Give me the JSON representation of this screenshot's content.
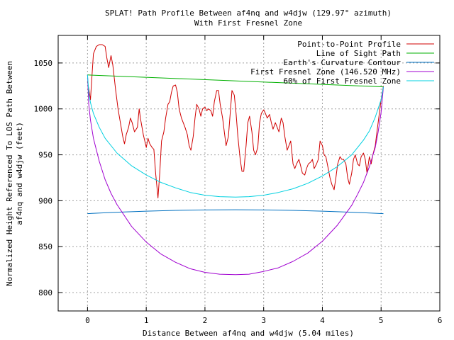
{
  "chart_data": {
    "type": "line",
    "title": "SPLAT! Path Profile Between af4nq and w4djw (129.97° azimuth)",
    "subtitle": "With First Fresnel Zone",
    "xlabel": "Distance Between af4nq and w4djw (5.04 miles)",
    "ylabel_line1": "Normalized Height Referenced To LOS Path Between",
    "ylabel_line2": "af4nq and w4djw (feet)",
    "xlim": [
      -0.5,
      6
    ],
    "ylim": [
      780,
      1080
    ],
    "xticks": [
      0,
      1,
      2,
      3,
      4,
      5,
      6
    ],
    "yticks": [
      800,
      850,
      900,
      950,
      1000,
      1050
    ],
    "grid": true,
    "legend_position": "top-right",
    "series": [
      {
        "name": "Point-to-Point Profile",
        "color": "#d00000",
        "points": [
          [
            0,
            1030
          ],
          [
            0.05,
            1010
          ],
          [
            0.08,
            1040
          ],
          [
            0.1,
            1060
          ],
          [
            0.15,
            1068
          ],
          [
            0.2,
            1070
          ],
          [
            0.25,
            1070
          ],
          [
            0.3,
            1068
          ],
          [
            0.33,
            1055
          ],
          [
            0.36,
            1045
          ],
          [
            0.4,
            1058
          ],
          [
            0.43,
            1048
          ],
          [
            0.48,
            1020
          ],
          [
            0.52,
            1000
          ],
          [
            0.56,
            985
          ],
          [
            0.6,
            970
          ],
          [
            0.63,
            962
          ],
          [
            0.66,
            972
          ],
          [
            0.7,
            980
          ],
          [
            0.73,
            990
          ],
          [
            0.76,
            985
          ],
          [
            0.8,
            975
          ],
          [
            0.85,
            980
          ],
          [
            0.88,
            1000
          ],
          [
            0.9,
            990
          ],
          [
            0.95,
            972
          ],
          [
            1.0,
            958
          ],
          [
            1.03,
            968
          ],
          [
            1.06,
            962
          ],
          [
            1.1,
            958
          ],
          [
            1.13,
            956
          ],
          [
            1.16,
            930
          ],
          [
            1.2,
            903
          ],
          [
            1.23,
            930
          ],
          [
            1.26,
            965
          ],
          [
            1.3,
            975
          ],
          [
            1.33,
            990
          ],
          [
            1.37,
            1005
          ],
          [
            1.4,
            1008
          ],
          [
            1.43,
            1018
          ],
          [
            1.46,
            1025
          ],
          [
            1.5,
            1026
          ],
          [
            1.53,
            1018
          ],
          [
            1.56,
            1000
          ],
          [
            1.6,
            990
          ],
          [
            1.63,
            985
          ],
          [
            1.66,
            980
          ],
          [
            1.7,
            972
          ],
          [
            1.73,
            960
          ],
          [
            1.76,
            955
          ],
          [
            1.8,
            970
          ],
          [
            1.83,
            990
          ],
          [
            1.86,
            1005
          ],
          [
            1.9,
            1000
          ],
          [
            1.93,
            992
          ],
          [
            1.96,
            1000
          ],
          [
            2.0,
            1002
          ],
          [
            2.03,
            998
          ],
          [
            2.06,
            1000
          ],
          [
            2.1,
            998
          ],
          [
            2.13,
            992
          ],
          [
            2.16,
            1008
          ],
          [
            2.2,
            1020
          ],
          [
            2.23,
            1020
          ],
          [
            2.26,
            1005
          ],
          [
            2.3,
            990
          ],
          [
            2.33,
            975
          ],
          [
            2.36,
            960
          ],
          [
            2.4,
            970
          ],
          [
            2.43,
            995
          ],
          [
            2.46,
            1020
          ],
          [
            2.5,
            1015
          ],
          [
            2.53,
            995
          ],
          [
            2.56,
            970
          ],
          [
            2.6,
            945
          ],
          [
            2.63,
            932
          ],
          [
            2.66,
            932
          ],
          [
            2.7,
            960
          ],
          [
            2.73,
            985
          ],
          [
            2.76,
            992
          ],
          [
            2.8,
            975
          ],
          [
            2.83,
            955
          ],
          [
            2.86,
            950
          ],
          [
            2.9,
            958
          ],
          [
            2.93,
            985
          ],
          [
            2.96,
            995
          ],
          [
            3.0,
            999
          ],
          [
            3.03,
            995
          ],
          [
            3.06,
            990
          ],
          [
            3.1,
            994
          ],
          [
            3.13,
            985
          ],
          [
            3.16,
            978
          ],
          [
            3.2,
            985
          ],
          [
            3.23,
            980
          ],
          [
            3.26,
            975
          ],
          [
            3.3,
            990
          ],
          [
            3.33,
            985
          ],
          [
            3.36,
            970
          ],
          [
            3.4,
            955
          ],
          [
            3.43,
            960
          ],
          [
            3.46,
            965
          ],
          [
            3.5,
            940
          ],
          [
            3.53,
            935
          ],
          [
            3.56,
            940
          ],
          [
            3.6,
            945
          ],
          [
            3.63,
            938
          ],
          [
            3.66,
            930
          ],
          [
            3.7,
            928
          ],
          [
            3.73,
            935
          ],
          [
            3.76,
            940
          ],
          [
            3.8,
            942
          ],
          [
            3.83,
            945
          ],
          [
            3.86,
            935
          ],
          [
            3.9,
            940
          ],
          [
            3.93,
            945
          ],
          [
            3.96,
            965
          ],
          [
            4.0,
            960
          ],
          [
            4.03,
            950
          ],
          [
            4.06,
            948
          ],
          [
            4.1,
            935
          ],
          [
            4.13,
            925
          ],
          [
            4.16,
            918
          ],
          [
            4.2,
            912
          ],
          [
            4.23,
            925
          ],
          [
            4.26,
            940
          ],
          [
            4.3,
            948
          ],
          [
            4.33,
            945
          ],
          [
            4.36,
            945
          ],
          [
            4.4,
            940
          ],
          [
            4.43,
            925
          ],
          [
            4.46,
            918
          ],
          [
            4.5,
            930
          ],
          [
            4.53,
            945
          ],
          [
            4.56,
            950
          ],
          [
            4.6,
            940
          ],
          [
            4.63,
            938
          ],
          [
            4.66,
            948
          ],
          [
            4.7,
            952
          ],
          [
            4.73,
            945
          ],
          [
            4.76,
            930
          ],
          [
            4.8,
            948
          ],
          [
            4.83,
            940
          ],
          [
            4.86,
            950
          ],
          [
            4.9,
            960
          ],
          [
            4.93,
            975
          ],
          [
            4.96,
            990
          ],
          [
            5.0,
            1010
          ],
          [
            5.04,
            1025
          ]
        ]
      },
      {
        "name": "Line of Sight Path",
        "color": "#00b000",
        "points": [
          [
            0,
            1037
          ],
          [
            5.04,
            1024
          ]
        ]
      },
      {
        "name": "Earth's Curvature Contour",
        "color": "#0070c0",
        "points": [
          [
            0,
            886
          ],
          [
            0.5,
            887.5
          ],
          [
            1.0,
            888.7
          ],
          [
            1.5,
            889.5
          ],
          [
            2.0,
            890
          ],
          [
            2.52,
            890.2
          ],
          [
            3.0,
            890
          ],
          [
            3.5,
            889.5
          ],
          [
            4.0,
            888.7
          ],
          [
            4.5,
            887.5
          ],
          [
            5.04,
            886
          ]
        ]
      },
      {
        "name": "First Fresnel Zone (146.520 MHz)",
        "color": "#a000d0",
        "points": [
          [
            0,
            1037
          ],
          [
            0.02,
            1006
          ],
          [
            0.05,
            988
          ],
          [
            0.1,
            968
          ],
          [
            0.2,
            943
          ],
          [
            0.3,
            923
          ],
          [
            0.4,
            908
          ],
          [
            0.5,
            896
          ],
          [
            0.75,
            872
          ],
          [
            1.0,
            855
          ],
          [
            1.25,
            842
          ],
          [
            1.5,
            833
          ],
          [
            1.75,
            826
          ],
          [
            2.0,
            822
          ],
          [
            2.25,
            820
          ],
          [
            2.52,
            819.5
          ],
          [
            2.75,
            820
          ],
          [
            3.0,
            823
          ],
          [
            3.25,
            827
          ],
          [
            3.5,
            834
          ],
          [
            3.75,
            843
          ],
          [
            4.0,
            856
          ],
          [
            4.25,
            873
          ],
          [
            4.5,
            895
          ],
          [
            4.6,
            907
          ],
          [
            4.7,
            920
          ],
          [
            4.8,
            937
          ],
          [
            4.9,
            958
          ],
          [
            4.95,
            975
          ],
          [
            5.0,
            996
          ],
          [
            5.04,
            1024
          ]
        ]
      },
      {
        "name": "60% of First Fresnel Zone",
        "color": "#00d0e0",
        "points": [
          [
            0,
            1037
          ],
          [
            0.02,
            1018
          ],
          [
            0.05,
            1007
          ],
          [
            0.1,
            995
          ],
          [
            0.2,
            980
          ],
          [
            0.3,
            968
          ],
          [
            0.5,
            952
          ],
          [
            0.75,
            938
          ],
          [
            1.0,
            928
          ],
          [
            1.25,
            920
          ],
          [
            1.5,
            914
          ],
          [
            1.75,
            909
          ],
          [
            2.0,
            906
          ],
          [
            2.25,
            904.5
          ],
          [
            2.52,
            904
          ],
          [
            2.75,
            904.5
          ],
          [
            3.0,
            906
          ],
          [
            3.25,
            909
          ],
          [
            3.5,
            913
          ],
          [
            3.75,
            919
          ],
          [
            4.0,
            927
          ],
          [
            4.25,
            937
          ],
          [
            4.5,
            950
          ],
          [
            4.7,
            966
          ],
          [
            4.8,
            976
          ],
          [
            4.9,
            991
          ],
          [
            5.0,
            1010
          ],
          [
            5.04,
            1024
          ]
        ]
      }
    ]
  }
}
